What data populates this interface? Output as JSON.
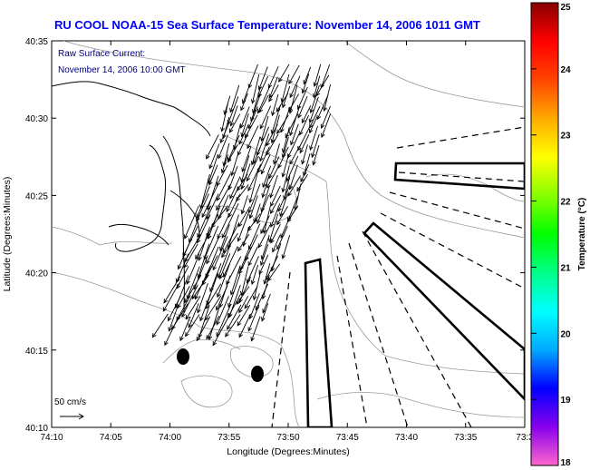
{
  "title": "RU COOL  NOAA-15  Sea Surface Temperature:  November 14, 2006 1011 GMT",
  "annotation": {
    "line1": "Raw Surface Current:",
    "line2": "November 14, 2006 10:00 GMT"
  },
  "scale": {
    "label": "50 cm/s"
  },
  "x_axis": {
    "label": "Longitude (Degrees:Minutes)",
    "ticks": [
      "74:10",
      "74:05",
      "74:00",
      "73:55",
      "73:50",
      "73:45",
      "73:40",
      "73:35",
      "73:3"
    ]
  },
  "y_axis": {
    "label": "Latitude (Degrees:Minutes)",
    "ticks": [
      "40:35",
      "40:30",
      "40:25",
      "40:20",
      "40:15",
      "40:10"
    ]
  },
  "colorbar": {
    "label": "Temperature (°C)",
    "min": 18,
    "max": 25,
    "ticks": [
      "25",
      "24",
      "23",
      "22",
      "21",
      "20",
      "19",
      "18"
    ],
    "colors": [
      "#ff66cc",
      "#8800ee",
      "#0000ff",
      "#00aaff",
      "#00ffff",
      "#00ff88",
      "#00ff00",
      "#88ff00",
      "#ffff00",
      "#ffaa00",
      "#ff4400",
      "#ff0000",
      "#880000"
    ]
  },
  "map_extent": {
    "lon_min_west": 73.5,
    "lon_max_west": 74.1667,
    "lat_min": 40.1667,
    "lat_max": 40.5833
  }
}
